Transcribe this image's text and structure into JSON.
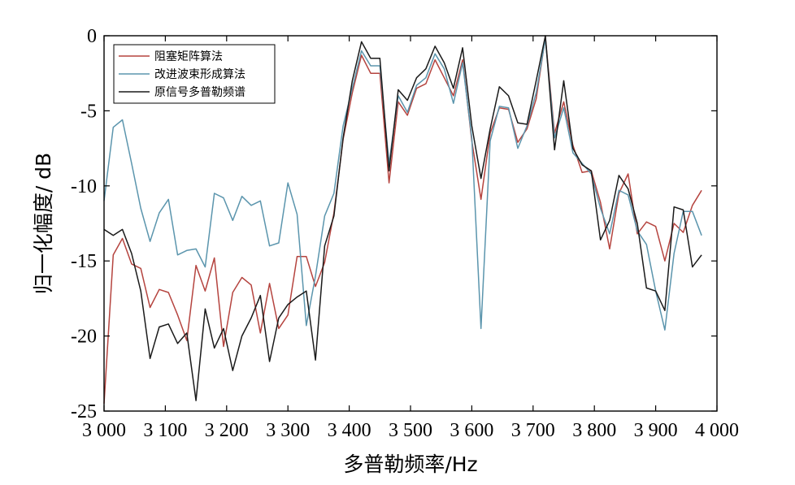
{
  "chart_data": {
    "type": "line",
    "title": "",
    "xlabel": "多普勒频率/Hz",
    "ylabel": "归一化幅度/ dB",
    "xlim": [
      3000,
      4000
    ],
    "ylim": [
      -25,
      0
    ],
    "x_ticks": [
      {
        "value": 3000,
        "label": "3 000"
      },
      {
        "value": 3100,
        "label": "3 100"
      },
      {
        "value": 3200,
        "label": "3 200"
      },
      {
        "value": 3300,
        "label": "3 300"
      },
      {
        "value": 3400,
        "label": "3 400"
      },
      {
        "value": 3500,
        "label": "3 500"
      },
      {
        "value": 3600,
        "label": "3 600"
      },
      {
        "value": 3700,
        "label": "3 700"
      },
      {
        "value": 3800,
        "label": "3 800"
      },
      {
        "value": 3900,
        "label": "3 900"
      },
      {
        "value": 4000,
        "label": "4 000"
      }
    ],
    "y_ticks": [
      {
        "value": 0,
        "label": "0"
      },
      {
        "value": -5,
        "label": "-5"
      },
      {
        "value": -10,
        "label": "-10"
      },
      {
        "value": -15,
        "label": "-15"
      },
      {
        "value": -20,
        "label": "-20"
      },
      {
        "value": -25,
        "label": "-25"
      }
    ],
    "grid": false,
    "legend_position": "top-left",
    "series": [
      {
        "name": "阻塞矩阵算法",
        "color": "#b5443f",
        "points": [
          [
            3000,
            -24.5
          ],
          [
            3015,
            -14.6
          ],
          [
            3030,
            -13.5
          ],
          [
            3045,
            -15.2
          ],
          [
            3060,
            -15.5
          ],
          [
            3075,
            -18.1
          ],
          [
            3090,
            -16.9
          ],
          [
            3105,
            -17.1
          ],
          [
            3120,
            -18.6
          ],
          [
            3135,
            -20.3
          ],
          [
            3150,
            -15.3
          ],
          [
            3165,
            -17.0
          ],
          [
            3180,
            -14.8
          ],
          [
            3195,
            -20.7
          ],
          [
            3210,
            -17.1
          ],
          [
            3225,
            -16.1
          ],
          [
            3240,
            -16.6
          ],
          [
            3255,
            -19.8
          ],
          [
            3270,
            -16.5
          ],
          [
            3285,
            -19.5
          ],
          [
            3300,
            -18.6
          ],
          [
            3315,
            -14.7
          ],
          [
            3330,
            -14.7
          ],
          [
            3345,
            -16.7
          ],
          [
            3360,
            -15.1
          ],
          [
            3375,
            -11.8
          ],
          [
            3390,
            -6.9
          ],
          [
            3405,
            -3.8
          ],
          [
            3420,
            -1.3
          ],
          [
            3435,
            -2.5
          ],
          [
            3450,
            -2.5
          ],
          [
            3465,
            -9.8
          ],
          [
            3480,
            -4.4
          ],
          [
            3495,
            -5.3
          ],
          [
            3510,
            -3.5
          ],
          [
            3525,
            -3.2
          ],
          [
            3540,
            -1.6
          ],
          [
            3555,
            -2.8
          ],
          [
            3570,
            -4.0
          ],
          [
            3585,
            -1.6
          ],
          [
            3600,
            -7.0
          ],
          [
            3615,
            -10.9
          ],
          [
            3630,
            -6.5
          ],
          [
            3645,
            -4.8
          ],
          [
            3660,
            -4.9
          ],
          [
            3675,
            -7.1
          ],
          [
            3690,
            -6.2
          ],
          [
            3705,
            -4.2
          ],
          [
            3720,
            -0.1
          ],
          [
            3735,
            -6.5
          ],
          [
            3750,
            -4.4
          ],
          [
            3765,
            -7.3
          ],
          [
            3780,
            -9.1
          ],
          [
            3795,
            -9.0
          ],
          [
            3810,
            -11.1
          ],
          [
            3825,
            -14.2
          ],
          [
            3840,
            -10.5
          ],
          [
            3855,
            -9.2
          ],
          [
            3870,
            -13.2
          ],
          [
            3885,
            -12.4
          ],
          [
            3900,
            -12.7
          ],
          [
            3915,
            -15.0
          ],
          [
            3930,
            -12.5
          ],
          [
            3945,
            -13.1
          ],
          [
            3960,
            -11.3
          ],
          [
            3975,
            -10.3
          ]
        ]
      },
      {
        "name": "改进波束形成算法",
        "color": "#5b95ad",
        "points": [
          [
            3000,
            -11.0
          ],
          [
            3015,
            -6.1
          ],
          [
            3030,
            -5.6
          ],
          [
            3045,
            -8.5
          ],
          [
            3060,
            -11.5
          ],
          [
            3075,
            -13.7
          ],
          [
            3090,
            -11.8
          ],
          [
            3105,
            -10.9
          ],
          [
            3120,
            -14.6
          ],
          [
            3135,
            -14.3
          ],
          [
            3150,
            -14.2
          ],
          [
            3165,
            -15.4
          ],
          [
            3180,
            -10.5
          ],
          [
            3195,
            -10.8
          ],
          [
            3210,
            -12.3
          ],
          [
            3225,
            -10.7
          ],
          [
            3240,
            -11.3
          ],
          [
            3255,
            -11.0
          ],
          [
            3270,
            -14.0
          ],
          [
            3285,
            -13.8
          ],
          [
            3300,
            -9.8
          ],
          [
            3315,
            -11.9
          ],
          [
            3330,
            -19.3
          ],
          [
            3345,
            -16.0
          ],
          [
            3360,
            -12.0
          ],
          [
            3375,
            -10.5
          ],
          [
            3390,
            -6.0
          ],
          [
            3405,
            -3.5
          ],
          [
            3420,
            -1.0
          ],
          [
            3435,
            -2.0
          ],
          [
            3450,
            -2.0
          ],
          [
            3465,
            -8.5
          ],
          [
            3480,
            -4.0
          ],
          [
            3495,
            -5.1
          ],
          [
            3510,
            -3.3
          ],
          [
            3525,
            -2.8
          ],
          [
            3540,
            -1.2
          ],
          [
            3555,
            -2.2
          ],
          [
            3570,
            -4.5
          ],
          [
            3585,
            -1.8
          ],
          [
            3600,
            -6.8
          ],
          [
            3615,
            -19.5
          ],
          [
            3630,
            -7.0
          ],
          [
            3645,
            -4.7
          ],
          [
            3660,
            -4.8
          ],
          [
            3675,
            -7.5
          ],
          [
            3690,
            -6.0
          ],
          [
            3705,
            -3.8
          ],
          [
            3720,
            -0.2
          ],
          [
            3735,
            -6.8
          ],
          [
            3750,
            -4.8
          ],
          [
            3765,
            -7.8
          ],
          [
            3780,
            -8.5
          ],
          [
            3795,
            -9.2
          ],
          [
            3810,
            -11.5
          ],
          [
            3825,
            -13.2
          ],
          [
            3840,
            -10.3
          ],
          [
            3855,
            -10.6
          ],
          [
            3870,
            -13.0
          ],
          [
            3885,
            -13.9
          ],
          [
            3900,
            -17.0
          ],
          [
            3915,
            -19.6
          ],
          [
            3930,
            -14.5
          ],
          [
            3945,
            -11.7
          ],
          [
            3960,
            -11.7
          ],
          [
            3975,
            -13.3
          ]
        ]
      },
      {
        "name": "原信号多普勒频谱",
        "color": "#1a1a1a",
        "points": [
          [
            3000,
            -12.9
          ],
          [
            3015,
            -13.3
          ],
          [
            3030,
            -12.9
          ],
          [
            3045,
            -14.5
          ],
          [
            3060,
            -17.0
          ],
          [
            3075,
            -21.5
          ],
          [
            3090,
            -19.4
          ],
          [
            3105,
            -19.2
          ],
          [
            3120,
            -20.5
          ],
          [
            3135,
            -19.8
          ],
          [
            3150,
            -24.3
          ],
          [
            3165,
            -18.2
          ],
          [
            3180,
            -20.8
          ],
          [
            3195,
            -19.5
          ],
          [
            3210,
            -22.3
          ],
          [
            3225,
            -20.0
          ],
          [
            3240,
            -18.8
          ],
          [
            3255,
            -17.3
          ],
          [
            3270,
            -21.7
          ],
          [
            3285,
            -18.8
          ],
          [
            3300,
            -17.9
          ],
          [
            3315,
            -17.4
          ],
          [
            3330,
            -17.0
          ],
          [
            3345,
            -21.6
          ],
          [
            3360,
            -14.0
          ],
          [
            3375,
            -12.0
          ],
          [
            3390,
            -6.8
          ],
          [
            3405,
            -3.0
          ],
          [
            3420,
            -0.4
          ],
          [
            3435,
            -1.5
          ],
          [
            3450,
            -1.5
          ],
          [
            3465,
            -9.0
          ],
          [
            3480,
            -3.6
          ],
          [
            3495,
            -4.3
          ],
          [
            3510,
            -2.8
          ],
          [
            3525,
            -2.2
          ],
          [
            3540,
            -0.7
          ],
          [
            3555,
            -1.8
          ],
          [
            3570,
            -3.5
          ],
          [
            3585,
            -0.8
          ],
          [
            3600,
            -6.0
          ],
          [
            3615,
            -9.5
          ],
          [
            3630,
            -6.2
          ],
          [
            3645,
            -3.4
          ],
          [
            3660,
            -4.0
          ],
          [
            3675,
            -5.8
          ],
          [
            3690,
            -5.9
          ],
          [
            3705,
            -3.0
          ],
          [
            3720,
            0.0
          ],
          [
            3735,
            -7.6
          ],
          [
            3750,
            -3.0
          ],
          [
            3765,
            -7.5
          ],
          [
            3780,
            -8.6
          ],
          [
            3795,
            -9.0
          ],
          [
            3810,
            -13.6
          ],
          [
            3825,
            -12.3
          ],
          [
            3840,
            -9.3
          ],
          [
            3855,
            -10.2
          ],
          [
            3870,
            -12.5
          ],
          [
            3885,
            -16.8
          ],
          [
            3900,
            -17.0
          ],
          [
            3915,
            -18.3
          ],
          [
            3930,
            -11.4
          ],
          [
            3945,
            -11.6
          ],
          [
            3960,
            -15.4
          ],
          [
            3975,
            -14.6
          ]
        ]
      }
    ]
  }
}
